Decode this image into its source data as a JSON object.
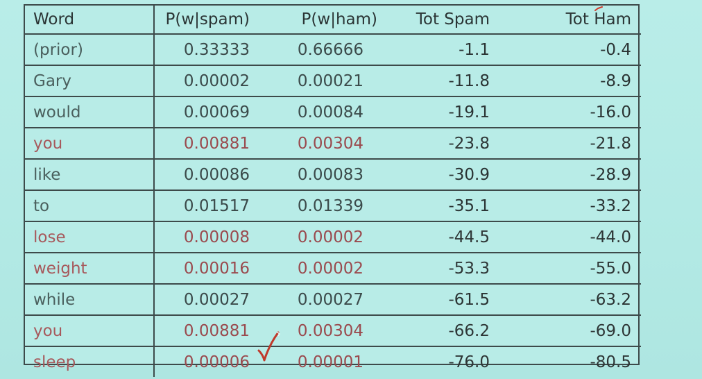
{
  "table": {
    "headers": {
      "word": "Word",
      "p_spam": "P(w|spam)",
      "p_ham": "P(w|ham)",
      "tot_spam": "Tot Spam",
      "tot_ham": "Tot Ham"
    },
    "rows": [
      {
        "word": "(prior)",
        "p_spam": "0.33333",
        "p_ham": "0.66666",
        "tot_spam": "-1.1",
        "tot_ham": "-0.4",
        "style": "gray"
      },
      {
        "word": "Gary",
        "p_spam": "0.00002",
        "p_ham": "0.00021",
        "tot_spam": "-11.8",
        "tot_ham": "-8.9",
        "style": "gray"
      },
      {
        "word": "would",
        "p_spam": "0.00069",
        "p_ham": "0.00084",
        "tot_spam": "-19.1",
        "tot_ham": "-16.0",
        "style": "gray"
      },
      {
        "word": "you",
        "p_spam": "0.00881",
        "p_ham": "0.00304",
        "tot_spam": "-23.8",
        "tot_ham": "-21.8",
        "style": "red"
      },
      {
        "word": "like",
        "p_spam": "0.00086",
        "p_ham": "0.00083",
        "tot_spam": "-30.9",
        "tot_ham": "-28.9",
        "style": "gray"
      },
      {
        "word": "to",
        "p_spam": "0.01517",
        "p_ham": "0.01339",
        "tot_spam": "-35.1",
        "tot_ham": "-33.2",
        "style": "gray"
      },
      {
        "word": "lose",
        "p_spam": "0.00008",
        "p_ham": "0.00002",
        "tot_spam": "-44.5",
        "tot_ham": "-44.0",
        "style": "red"
      },
      {
        "word": "weight",
        "p_spam": "0.00016",
        "p_ham": "0.00002",
        "tot_spam": "-53.3",
        "tot_ham": "-55.0",
        "style": "red"
      },
      {
        "word": "while",
        "p_spam": "0.00027",
        "p_ham": "0.00027",
        "tot_spam": "-61.5",
        "tot_ham": "-63.2",
        "style": "gray"
      },
      {
        "word": "you",
        "p_spam": "0.00881",
        "p_ham": "0.00304",
        "tot_spam": "-66.2",
        "tot_ham": "-69.0",
        "style": "red"
      },
      {
        "word": "sleep",
        "p_spam": "0.00006",
        "p_ham": "0.00001",
        "tot_spam": "-76.0",
        "tot_ham": "-80.5",
        "style": "red"
      }
    ]
  },
  "colors": {
    "background": "#b4ebe6",
    "border": "#3d4a4a",
    "gray_text": "#3b4a4a",
    "red_text": "#9a4a4e",
    "annotation_red": "#c0392b"
  },
  "icons": {
    "annotation": "check-mark-icon",
    "header_tick": "red-tick-icon"
  }
}
